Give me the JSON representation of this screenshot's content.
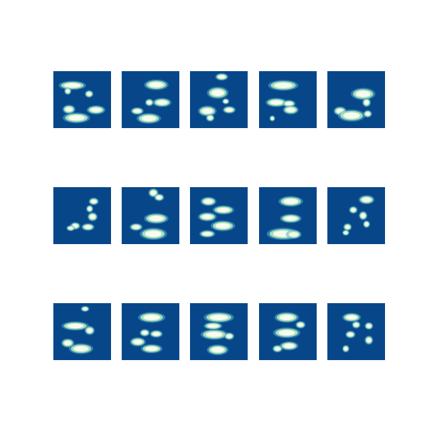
{
  "figure": {
    "rows": 3,
    "cols": 5,
    "colors": {
      "background": "#ffffff",
      "tile_background": "#08468a",
      "blob_core": "#f7fcf0",
      "blob_halo": "#a8ddb5",
      "blob_faint": "#4eb3d3"
    },
    "tiles": [
      [
        [
          [
            0.33,
            0.25,
            0.18,
            0.05
          ],
          [
            0.25,
            0.35,
            0.04,
            0.04
          ],
          [
            0.62,
            0.4,
            0.05,
            0.04
          ],
          [
            0.27,
            0.67,
            0.08,
            0.05
          ],
          [
            0.74,
            0.68,
            0.12,
            0.05
          ],
          [
            0.4,
            0.82,
            0.18,
            0.06
          ]
        ],
        [
          [
            0.6,
            0.24,
            0.16,
            0.06
          ],
          [
            0.48,
            0.55,
            0.05,
            0.04
          ],
          [
            0.7,
            0.55,
            0.12,
            0.05
          ],
          [
            0.27,
            0.7,
            0.08,
            0.04
          ],
          [
            0.47,
            0.83,
            0.16,
            0.06
          ]
        ],
        [
          [
            0.55,
            0.1,
            0.08,
            0.04
          ],
          [
            0.48,
            0.38,
            0.14,
            0.07
          ],
          [
            0.62,
            0.53,
            0.04,
            0.03
          ],
          [
            0.3,
            0.7,
            0.12,
            0.06
          ],
          [
            0.68,
            0.68,
            0.08,
            0.04
          ],
          [
            0.35,
            0.82,
            0.05,
            0.04
          ]
        ],
        [
          [
            0.42,
            0.25,
            0.2,
            0.06
          ],
          [
            0.3,
            0.55,
            0.14,
            0.05
          ],
          [
            0.52,
            0.57,
            0.08,
            0.04
          ],
          [
            0.55,
            0.68,
            0.1,
            0.05
          ],
          [
            0.23,
            0.83,
            0.03,
            0.03
          ]
        ],
        [
          [
            0.62,
            0.4,
            0.16,
            0.07
          ],
          [
            0.68,
            0.55,
            0.05,
            0.05
          ],
          [
            0.22,
            0.7,
            0.08,
            0.05
          ],
          [
            0.42,
            0.78,
            0.18,
            0.07
          ],
          [
            0.7,
            0.75,
            0.05,
            0.04
          ]
        ]
      ],
      [
        [
          [
            0.7,
            0.25,
            0.06,
            0.04
          ],
          [
            0.63,
            0.38,
            0.04,
            0.04
          ],
          [
            0.68,
            0.52,
            0.06,
            0.05
          ],
          [
            0.38,
            0.68,
            0.06,
            0.04
          ],
          [
            0.6,
            0.7,
            0.08,
            0.04
          ],
          [
            0.3,
            0.72,
            0.05,
            0.03
          ]
        ],
        [
          [
            0.55,
            0.1,
            0.06,
            0.05
          ],
          [
            0.65,
            0.18,
            0.06,
            0.04
          ],
          [
            0.6,
            0.55,
            0.16,
            0.06
          ],
          [
            0.25,
            0.7,
            0.08,
            0.04
          ],
          [
            0.55,
            0.82,
            0.18,
            0.07
          ]
        ],
        [
          [
            0.32,
            0.25,
            0.1,
            0.05
          ],
          [
            0.58,
            0.4,
            0.14,
            0.05
          ],
          [
            0.3,
            0.52,
            0.12,
            0.05
          ],
          [
            0.57,
            0.68,
            0.16,
            0.06
          ],
          [
            0.3,
            0.82,
            0.1,
            0.04
          ]
        ],
        [
          [
            0.55,
            0.25,
            0.16,
            0.06
          ],
          [
            0.55,
            0.55,
            0.14,
            0.05
          ],
          [
            0.42,
            0.82,
            0.22,
            0.07
          ],
          [
            0.6,
            0.83,
            0.1,
            0.05
          ]
        ],
        [
          [
            0.68,
            0.22,
            0.1,
            0.05
          ],
          [
            0.45,
            0.4,
            0.05,
            0.04
          ],
          [
            0.62,
            0.5,
            0.05,
            0.05
          ],
          [
            0.35,
            0.7,
            0.05,
            0.04
          ],
          [
            0.68,
            0.65,
            0.04,
            0.04
          ],
          [
            0.32,
            0.8,
            0.04,
            0.03
          ]
        ]
      ],
      [
        [
          [
            0.55,
            0.1,
            0.05,
            0.03
          ],
          [
            0.38,
            0.4,
            0.18,
            0.05
          ],
          [
            0.63,
            0.48,
            0.06,
            0.05
          ],
          [
            0.25,
            0.7,
            0.08,
            0.05
          ],
          [
            0.48,
            0.8,
            0.16,
            0.06
          ]
        ],
        [
          [
            0.52,
            0.25,
            0.18,
            0.06
          ],
          [
            0.4,
            0.52,
            0.06,
            0.04
          ],
          [
            0.6,
            0.54,
            0.08,
            0.04
          ],
          [
            0.28,
            0.68,
            0.1,
            0.05
          ],
          [
            0.52,
            0.8,
            0.14,
            0.05
          ]
        ],
        [
          [
            0.5,
            0.25,
            0.2,
            0.06
          ],
          [
            0.4,
            0.4,
            0.12,
            0.04
          ],
          [
            0.42,
            0.55,
            0.18,
            0.06
          ],
          [
            0.68,
            0.58,
            0.06,
            0.04
          ],
          [
            0.48,
            0.82,
            0.14,
            0.06
          ]
        ],
        [
          [
            0.48,
            0.25,
            0.16,
            0.06
          ],
          [
            0.48,
            0.52,
            0.18,
            0.06
          ],
          [
            0.72,
            0.38,
            0.06,
            0.04
          ],
          [
            0.52,
            0.75,
            0.12,
            0.05
          ],
          [
            0.32,
            0.8,
            0.06,
            0.04
          ]
        ],
        [
          [
            0.42,
            0.25,
            0.12,
            0.05
          ],
          [
            0.5,
            0.38,
            0.05,
            0.04
          ],
          [
            0.72,
            0.4,
            0.05,
            0.04
          ],
          [
            0.4,
            0.55,
            0.06,
            0.04
          ],
          [
            0.72,
            0.65,
            0.05,
            0.05
          ],
          [
            0.32,
            0.8,
            0.04,
            0.04
          ]
        ]
      ]
    ]
  }
}
